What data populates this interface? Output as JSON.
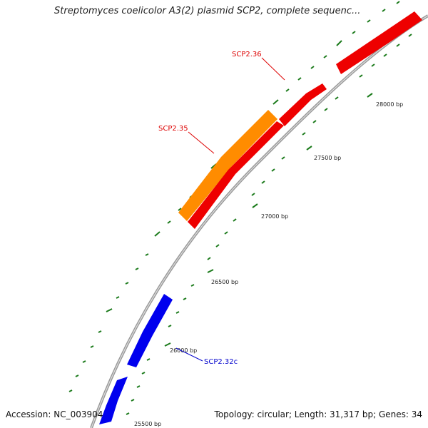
{
  "header": {
    "title": "Streptomyces coelicolor A3(2) plasmid SCP2, complete sequenc..."
  },
  "footer": {
    "accession": "Accession: NC_003904",
    "summary": "Topology: circular; Length: 31,317 bp; Genes: 34"
  },
  "map": {
    "backbone_color": "#888888",
    "tick_color": "#1a7a1a",
    "ticks": [
      {
        "label": "25500 bp"
      },
      {
        "label": "26000 bp"
      },
      {
        "label": "26500 bp"
      },
      {
        "label": "27000 bp"
      },
      {
        "label": "27500 bp"
      },
      {
        "label": "28000 bp"
      }
    ],
    "gene_labels": [
      {
        "label": "SCP2.36",
        "color": "#dd0000"
      },
      {
        "label": "SCP2.35",
        "color": "#dd0000"
      },
      {
        "label": "SCP2.32c",
        "color": "#0000cc"
      }
    ],
    "feature_colors": {
      "forward": "#ee0000",
      "forward_alt": "#ff8c00",
      "reverse": "#0000ee"
    }
  }
}
